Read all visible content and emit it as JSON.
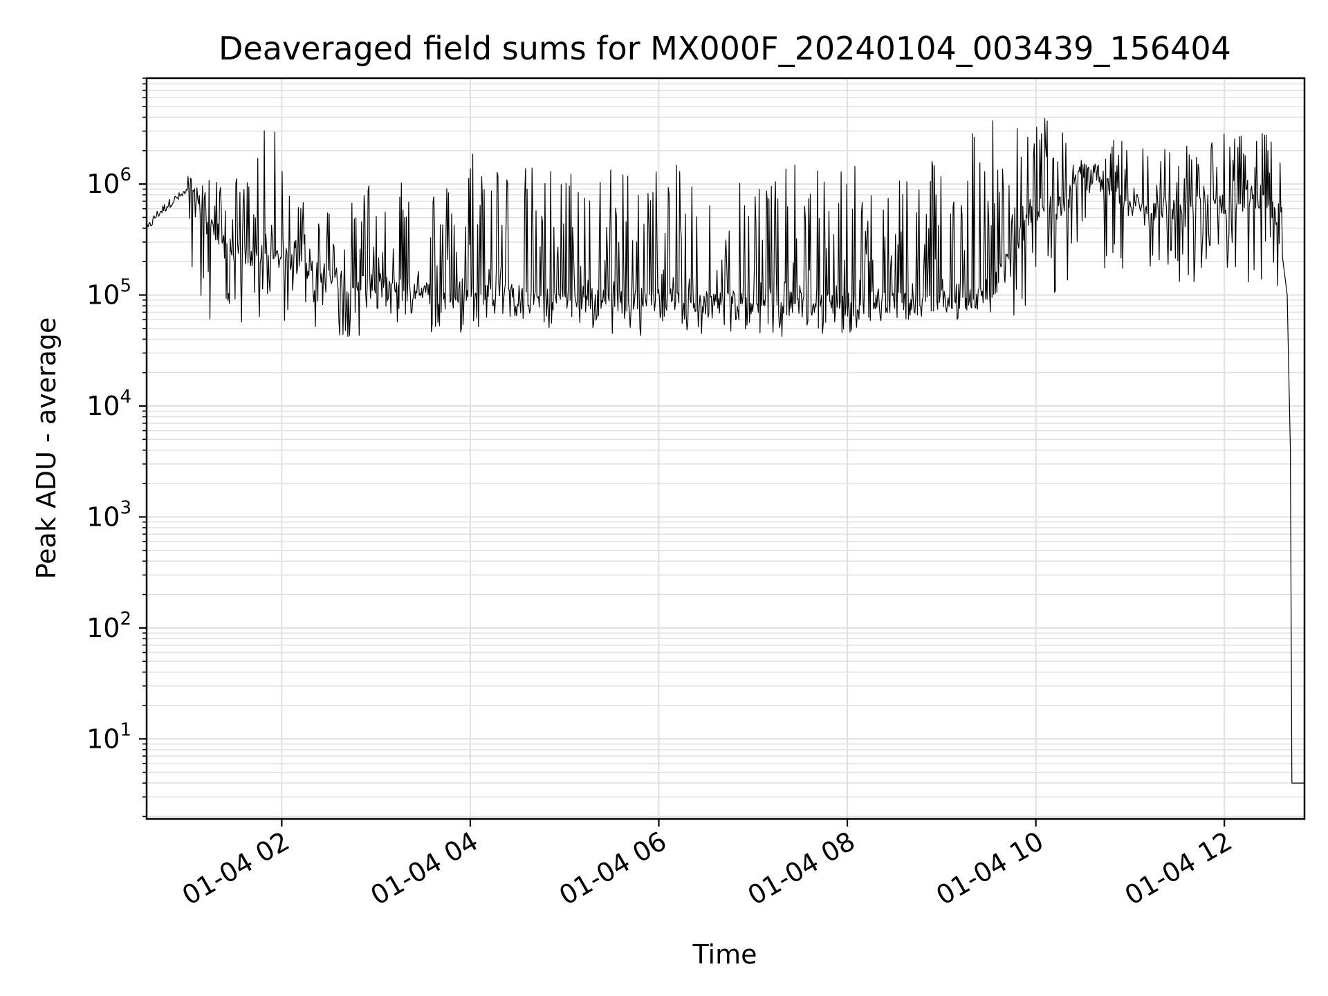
{
  "chart_data": {
    "type": "line",
    "title": "Deaveraged field sums for MX000F_20240104_003439_156404",
    "xlabel": "Time",
    "ylabel": "Peak ADU - average",
    "yscale": "log",
    "ylim": [
      1.9,
      9000000
    ],
    "xlim": [
      "2024-01-04 00:34",
      "2024-01-04 12:51"
    ],
    "grid": true,
    "line_color": "#000000",
    "grid_color": "#e0e0e0",
    "x_ticks": [
      {
        "t": "2024-01-04 02:00",
        "label": "01-04 02"
      },
      {
        "t": "2024-01-04 04:00",
        "label": "01-04 04"
      },
      {
        "t": "2024-01-04 06:00",
        "label": "01-04 06"
      },
      {
        "t": "2024-01-04 08:00",
        "label": "01-04 08"
      },
      {
        "t": "2024-01-04 10:00",
        "label": "01-04 10"
      },
      {
        "t": "2024-01-04 12:00",
        "label": "01-04 12"
      }
    ],
    "y_ticks": [
      {
        "value": 10,
        "base": "10",
        "exp": "1"
      },
      {
        "value": 100,
        "base": "10",
        "exp": "2"
      },
      {
        "value": 1000,
        "base": "10",
        "exp": "3"
      },
      {
        "value": 10000,
        "base": "10",
        "exp": "4"
      },
      {
        "value": 100000,
        "base": "10",
        "exp": "5"
      },
      {
        "value": 1000000,
        "base": "10",
        "exp": "6"
      }
    ],
    "series": [
      {
        "x": [
          "2024-01-04 00:34",
          "2024-01-04 00:40",
          "2024-01-04 00:50",
          "2024-01-04 01:00",
          "2024-01-04 01:10",
          "2024-01-04 01:20",
          "2024-01-04 01:30",
          "2024-01-04 01:45",
          "2024-01-04 02:00",
          "2024-01-04 02:30",
          "2024-01-04 03:00",
          "2024-01-04 03:30",
          "2024-01-04 04:00",
          "2024-01-04 04:30",
          "2024-01-04 05:00",
          "2024-01-04 05:30",
          "2024-01-04 06:00",
          "2024-01-04 06:30",
          "2024-01-04 07:00",
          "2024-01-04 07:30",
          "2024-01-04 08:00",
          "2024-01-04 08:30",
          "2024-01-04 09:00",
          "2024-01-04 09:30",
          "2024-01-04 10:00",
          "2024-01-04 10:20",
          "2024-01-04 10:30",
          "2024-01-04 10:45",
          "2024-01-04 11:00",
          "2024-01-04 11:30",
          "2024-01-04 12:00",
          "2024-01-04 12:20",
          "2024-01-04 12:37",
          "2024-01-04 12:40",
          "2024-01-04 12:42",
          "2024-01-04 12:43",
          "2024-01-04 12:51"
        ],
        "y": [
          380000,
          520000,
          700000,
          850000,
          600000,
          300000,
          250000,
          200000,
          220000,
          150000,
          120000,
          110000,
          110000,
          100000,
          100000,
          95000,
          95000,
          90000,
          90000,
          85000,
          85000,
          90000,
          90000,
          100000,
          600000,
          700000,
          1500000,
          1000000,
          700000,
          600000,
          700000,
          800000,
          500000,
          100000,
          4000,
          4,
          4
        ],
        "peak_values": [
          1900000,
          1200000,
          1200000,
          3100000,
          1000000,
          700000,
          1200000,
          1900000,
          1100000,
          2600000,
          1500000,
          1500000,
          1500000,
          1500000,
          1500000,
          1500000,
          1500000,
          1500000,
          1500000,
          1500000,
          1500000,
          1500000,
          2300000,
          4700000,
          3500000,
          4200000,
          1500000,
          2500000,
          2500000,
          2500000,
          3000000,
          2900000
        ],
        "trough_values": [
          250000,
          60000,
          50000,
          55000,
          50000,
          42000,
          55000,
          50000,
          45000,
          50000,
          55000,
          48000,
          48000,
          42000,
          45000,
          45000,
          45000,
          42000,
          50000,
          45000,
          50000,
          60000,
          55000,
          70000,
          65000,
          100000,
          150000,
          140000,
          150000,
          110000,
          130000,
          100000
        ]
      }
    ]
  }
}
